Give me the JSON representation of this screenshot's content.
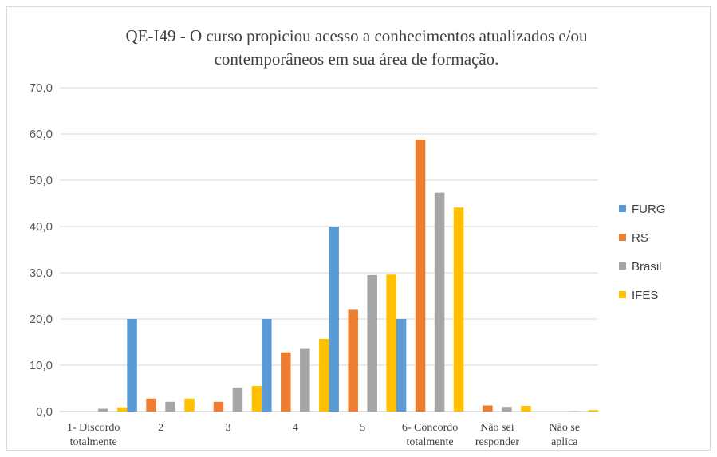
{
  "chart_data": {
    "type": "bar",
    "title_lines": [
      "QE-I49 - O curso propiciou acesso a conhecimentos atualizados e/ou",
      "contemporâneos em sua área de formação."
    ],
    "xlabel": "",
    "ylabel": "",
    "ylim": [
      0,
      70
    ],
    "yticks": [
      "0,0",
      "10,0",
      "20,0",
      "30,0",
      "40,0",
      "50,0",
      "60,0",
      "70,0"
    ],
    "ytick_values": [
      0,
      10,
      20,
      30,
      40,
      50,
      60,
      70
    ],
    "grid": true,
    "legend_position": "right",
    "categories": [
      [
        "1- Discordo",
        "totalmente"
      ],
      [
        "2"
      ],
      [
        "3"
      ],
      [
        "4"
      ],
      [
        "5"
      ],
      [
        "6- Concordo",
        "totalmente"
      ],
      [
        "Não sei",
        "responder"
      ],
      [
        "Não se",
        "aplica"
      ]
    ],
    "series": [
      {
        "name": "FURG",
        "color": "#5b9bd5",
        "values": [
          0.0,
          20.0,
          0.0,
          20.0,
          40.0,
          20.0,
          0.0,
          0.0
        ]
      },
      {
        "name": "RS",
        "color": "#ed7d31",
        "values": [
          0.0,
          2.8,
          2.1,
          12.8,
          22.0,
          58.8,
          1.3,
          0.0
        ]
      },
      {
        "name": "Brasil",
        "color": "#a5a5a5",
        "values": [
          0.6,
          2.1,
          5.2,
          13.7,
          29.5,
          47.3,
          1.0,
          0.1
        ]
      },
      {
        "name": "IFES",
        "color": "#ffc000",
        "values": [
          0.9,
          2.8,
          5.5,
          15.7,
          29.6,
          44.1,
          1.2,
          0.3
        ]
      }
    ]
  }
}
